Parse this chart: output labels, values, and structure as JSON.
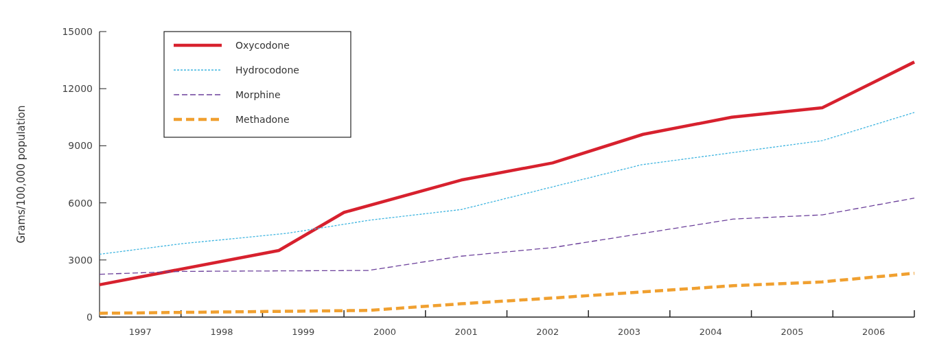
{
  "chart_data": {
    "type": "line",
    "ylabel": "Grams/100,000 population",
    "xlim": [
      1997,
      2007
    ],
    "ylim": [
      0,
      15000
    ],
    "yticks": [
      0,
      3000,
      6000,
      9000,
      12000,
      15000
    ],
    "xticks": [
      {
        "value": 1997.5,
        "label": "1997"
      },
      {
        "value": 1998,
        "label": null
      },
      {
        "value": 1998.5,
        "label": "1998"
      },
      {
        "value": 1999,
        "label": null
      },
      {
        "value": 1999.5,
        "label": "1999"
      },
      {
        "value": 2000,
        "label": null
      },
      {
        "value": 2000.5,
        "label": "2000"
      },
      {
        "value": 2001,
        "label": null
      },
      {
        "value": 2001.5,
        "label": "2001"
      },
      {
        "value": 2002,
        "label": null
      },
      {
        "value": 2002.5,
        "label": "2002"
      },
      {
        "value": 2003,
        "label": null
      },
      {
        "value": 2003.5,
        "label": "2003"
      },
      {
        "value": 2004,
        "label": null
      },
      {
        "value": 2004.5,
        "label": "2004"
      },
      {
        "value": 2005,
        "label": null
      },
      {
        "value": 2005.5,
        "label": "2005"
      },
      {
        "value": 2006,
        "label": null
      },
      {
        "value": 2006.5,
        "label": "2006"
      },
      {
        "value": 2007,
        "label": null
      }
    ],
    "grid": false,
    "legend": "top left",
    "marker": "none",
    "series": [
      {
        "name": "Oxycodone",
        "color": "#d7212e",
        "line_style": "solid",
        "x": [
          1997,
          1999.2,
          2000,
          2001.44,
          2002.56,
          2003.67,
          2004.76,
          2005.87,
          2007
        ],
        "values": [
          1700,
          3500,
          5500,
          7200,
          8100,
          9600,
          10500,
          11000,
          13400
        ]
      },
      {
        "name": "Hydrocodone",
        "color": "#3fb5e0",
        "line_style": "dotted",
        "x": [
          1997,
          1998,
          1999.3,
          2000.33,
          2001.44,
          2003.65,
          2005.87,
          2007
        ],
        "values": [
          3300,
          3850,
          4400,
          5100,
          5650,
          8000,
          9270,
          10750
        ]
      },
      {
        "name": "Morphine",
        "color": "#6b3f9a",
        "line_style": "dashed",
        "x": [
          1997,
          1998,
          2000.3,
          2001.44,
          2002.56,
          2004.78,
          2005.87,
          2007
        ],
        "values": [
          2250,
          2400,
          2450,
          3200,
          3650,
          5150,
          5370,
          6250
        ]
      },
      {
        "name": "Methadone",
        "color": "#f0a030",
        "line_style": "dashed",
        "x": [
          1997,
          2000.3,
          2001.44,
          2002.56,
          2004.78,
          2005.87,
          2007
        ],
        "values": [
          200,
          350,
          700,
          1000,
          1650,
          1850,
          2300
        ]
      }
    ]
  }
}
